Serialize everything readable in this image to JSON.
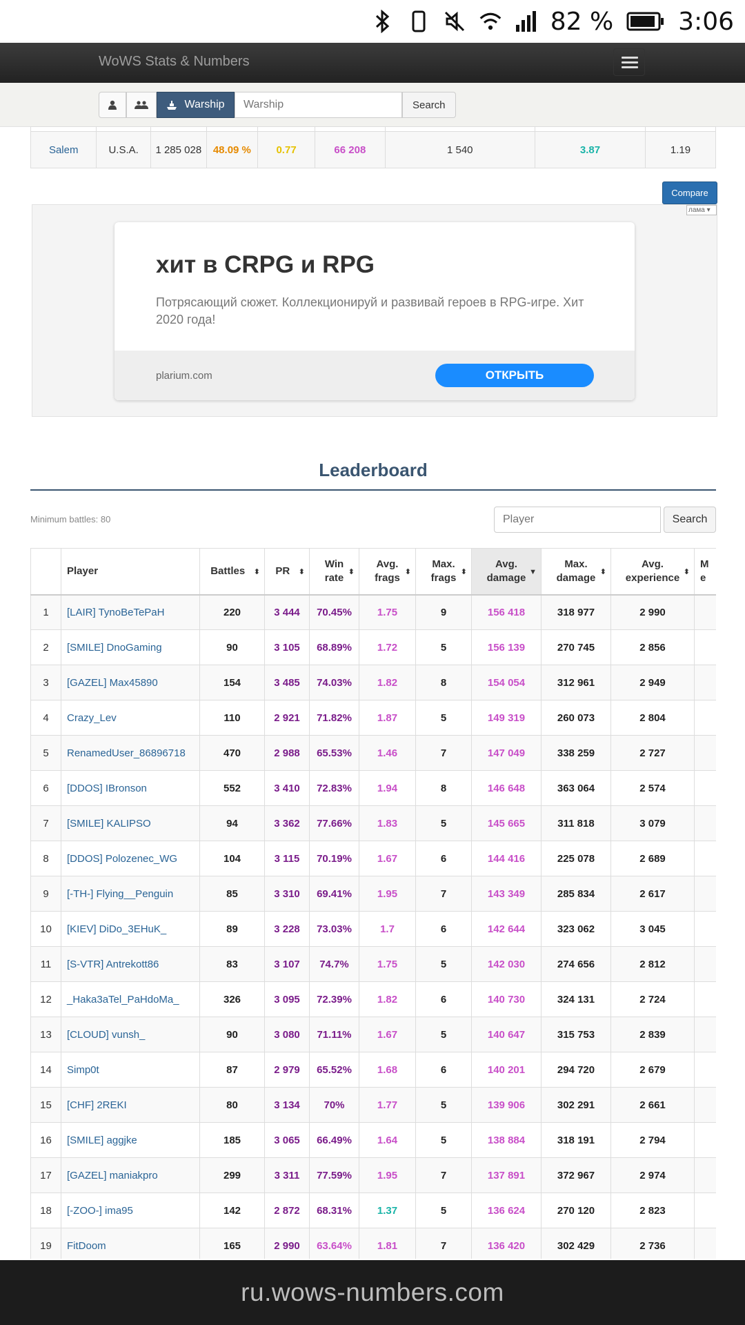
{
  "status_bar": {
    "battery_percent": "82 %",
    "time": "3:06",
    "icons": [
      "bluetooth-icon",
      "vibrate-icon",
      "mute-icon",
      "wifi-icon",
      "signal-icon",
      "battery-icon"
    ]
  },
  "navbar": {
    "brand": "WoWS Stats & Numbers",
    "menu_icon": "hamburger-icon"
  },
  "search_bar": {
    "mode_player_icon": "user-icon",
    "mode_clan_icon": "users-icon",
    "mode_warship_label": "Warship",
    "mode_warship_icon": "ship-icon",
    "input_placeholder": "Warship",
    "search_label": "Search"
  },
  "ship_row": {
    "name": "Salem",
    "nation": "U.S.A.",
    "battles": "1 285 028",
    "win_rate": "48.09 %",
    "avg_frags": "0.77",
    "avg_damage": "66 208",
    "avg_exp": "1 540",
    "kd": "3.87",
    "planes": "1.19"
  },
  "compare_label": "Compare",
  "ad": {
    "select_label": "лама",
    "title": "хит в CRPG и RPG",
    "description": "Потрясающий сюжет. Коллекционируй и развивай героев в RPG-игре. Хит 2020 года!",
    "domain": "plarium.com",
    "button": "ОТКРЫТЬ"
  },
  "leaderboard": {
    "title": "Leaderboard",
    "min_battles": "Minimum battles: 80",
    "player_placeholder": "Player",
    "search_label": "Search",
    "columns": {
      "player": "Player",
      "battles": "Battles",
      "pr": "PR",
      "win_rate": [
        "Win",
        "rate"
      ],
      "avg_frags": [
        "Avg.",
        "frags"
      ],
      "max_frags": [
        "Max.",
        "frags"
      ],
      "avg_damage": [
        "Avg.",
        "damage"
      ],
      "max_damage": [
        "Max.",
        "damage"
      ],
      "avg_exp": [
        "Avg.",
        "experience"
      ],
      "next_col": [
        "M",
        "e"
      ]
    },
    "rows": [
      {
        "rank": "1",
        "player": "[LAIR] TynoBeTePaH",
        "battles": "220",
        "pr": "3 444",
        "win_rate": "70.45%",
        "avg_frags": "1.75",
        "max_frags": "9",
        "avg_damage": "156 418",
        "max_damage": "318 977",
        "avg_exp": "2 990"
      },
      {
        "rank": "2",
        "player": "[SMILE] DnoGaming",
        "battles": "90",
        "pr": "3 105",
        "win_rate": "68.89%",
        "avg_frags": "1.72",
        "max_frags": "5",
        "avg_damage": "156 139",
        "max_damage": "270 745",
        "avg_exp": "2 856"
      },
      {
        "rank": "3",
        "player": "[GAZEL] Max45890",
        "battles": "154",
        "pr": "3 485",
        "win_rate": "74.03%",
        "avg_frags": "1.82",
        "max_frags": "8",
        "avg_damage": "154 054",
        "max_damage": "312 961",
        "avg_exp": "2 949"
      },
      {
        "rank": "4",
        "player": "Crazy_Lev",
        "battles": "110",
        "pr": "2 921",
        "win_rate": "71.82%",
        "avg_frags": "1.87",
        "max_frags": "5",
        "avg_damage": "149 319",
        "max_damage": "260 073",
        "avg_exp": "2 804"
      },
      {
        "rank": "5",
        "player": "RenamedUser_86896718",
        "battles": "470",
        "pr": "2 988",
        "win_rate": "65.53%",
        "avg_frags": "1.46",
        "max_frags": "7",
        "avg_damage": "147 049",
        "max_damage": "338 259",
        "avg_exp": "2 727"
      },
      {
        "rank": "6",
        "player": "[DDOS] IBronson",
        "battles": "552",
        "pr": "3 410",
        "win_rate": "72.83%",
        "avg_frags": "1.94",
        "max_frags": "8",
        "avg_damage": "146 648",
        "max_damage": "363 064",
        "avg_exp": "2 574"
      },
      {
        "rank": "7",
        "player": "[SMILE] KALIPSO",
        "battles": "94",
        "pr": "3 362",
        "win_rate": "77.66%",
        "avg_frags": "1.83",
        "max_frags": "5",
        "avg_damage": "145 665",
        "max_damage": "311 818",
        "avg_exp": "3 079"
      },
      {
        "rank": "8",
        "player": "[DDOS] Polozenec_WG",
        "battles": "104",
        "pr": "3 115",
        "win_rate": "70.19%",
        "avg_frags": "1.67",
        "max_frags": "6",
        "avg_damage": "144 416",
        "max_damage": "225 078",
        "avg_exp": "2 689"
      },
      {
        "rank": "9",
        "player": "[-TH-] Flying__Penguin",
        "battles": "85",
        "pr": "3 310",
        "win_rate": "69.41%",
        "avg_frags": "1.95",
        "max_frags": "7",
        "avg_damage": "143 349",
        "max_damage": "285 834",
        "avg_exp": "2 617"
      },
      {
        "rank": "10",
        "player": "[KIEV] DiDo_3EHuK_",
        "battles": "89",
        "pr": "3 228",
        "win_rate": "73.03%",
        "avg_frags": "1.7",
        "max_frags": "6",
        "avg_damage": "142 644",
        "max_damage": "323 062",
        "avg_exp": "3 045"
      },
      {
        "rank": "11",
        "player": "[S-VTR] Antrekott86",
        "battles": "83",
        "pr": "3 107",
        "win_rate": "74.7%",
        "avg_frags": "1.75",
        "max_frags": "5",
        "avg_damage": "142 030",
        "max_damage": "274 656",
        "avg_exp": "2 812"
      },
      {
        "rank": "12",
        "player": "_Haka3aTel_PaHdoMa_",
        "battles": "326",
        "pr": "3 095",
        "win_rate": "72.39%",
        "avg_frags": "1.82",
        "max_frags": "6",
        "avg_damage": "140 730",
        "max_damage": "324 131",
        "avg_exp": "2 724"
      },
      {
        "rank": "13",
        "player": "[CLOUD] vunsh_",
        "battles": "90",
        "pr": "3 080",
        "win_rate": "71.11%",
        "avg_frags": "1.67",
        "max_frags": "5",
        "avg_damage": "140 647",
        "max_damage": "315 753",
        "avg_exp": "2 839"
      },
      {
        "rank": "14",
        "player": "Simp0t",
        "battles": "87",
        "pr": "2 979",
        "win_rate": "65.52%",
        "avg_frags": "1.68",
        "max_frags": "6",
        "avg_damage": "140 201",
        "max_damage": "294 720",
        "avg_exp": "2 679"
      },
      {
        "rank": "15",
        "player": "[CHF] 2REKI",
        "battles": "80",
        "pr": "3 134",
        "win_rate": "70%",
        "avg_frags": "1.77",
        "max_frags": "5",
        "avg_damage": "139 906",
        "max_damage": "302 291",
        "avg_exp": "2 661"
      },
      {
        "rank": "16",
        "player": "[SMILE] aggjke",
        "battles": "185",
        "pr": "3 065",
        "win_rate": "66.49%",
        "avg_frags": "1.64",
        "max_frags": "5",
        "avg_damage": "138 884",
        "max_damage": "318 191",
        "avg_exp": "2 794"
      },
      {
        "rank": "17",
        "player": "[GAZEL] maniakpro",
        "battles": "299",
        "pr": "3 311",
        "win_rate": "77.59%",
        "avg_frags": "1.95",
        "max_frags": "7",
        "avg_damage": "137 891",
        "max_damage": "372 967",
        "avg_exp": "2 974"
      },
      {
        "rank": "18",
        "player": "[-ZOO-] ima95",
        "battles": "142",
        "pr": "2 872",
        "win_rate": "68.31%",
        "avg_frags": "1.37",
        "max_frags": "5",
        "avg_damage": "136 624",
        "max_damage": "270 120",
        "avg_exp": "2 823",
        "frags_color": "teal"
      },
      {
        "rank": "19",
        "player": "FitDoom",
        "battles": "165",
        "pr": "2 990",
        "win_rate": "63.64%",
        "avg_frags": "1.81",
        "max_frags": "7",
        "avg_damage": "136 420",
        "max_damage": "302 429",
        "avg_exp": "2 736",
        "wr_color": "magenta"
      }
    ]
  },
  "url_bar": "ru.wows-numbers.com",
  "colors": {
    "navbar": "#2b2b2b",
    "accent_blue": "#3e5c7d",
    "link": "#2a6496",
    "purple": "#7a1c8a",
    "magenta": "#c84fc8",
    "teal": "#1ab4a8",
    "orange": "#e68a00",
    "yellow": "#e6c200"
  }
}
